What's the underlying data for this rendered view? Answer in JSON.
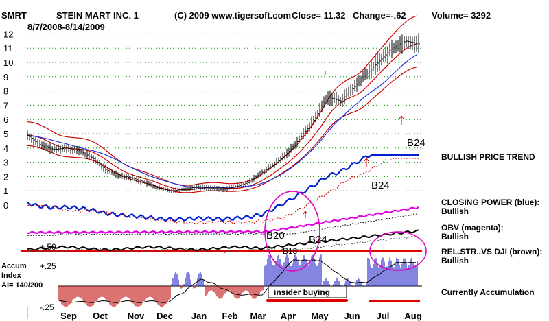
{
  "header": {
    "ticker": "SMRT",
    "company": "STEIN MART INC. 1",
    "copyright": "(C) 2009 www.tigersoft.com",
    "close_label": "Close=",
    "close_value": "11.32",
    "change_label": "Change=",
    "change_value": "-.62",
    "volume_label": "Volume=",
    "volume_value": "3292",
    "date_range": "8/7/2008-8/14/2009"
  },
  "colors": {
    "price": "#000000",
    "red_band": "#cc0000",
    "ma_blue": "#1f35e6",
    "closing_power": "#0020d0",
    "obv": "#e000e0",
    "rel_str": "#000000",
    "accum_bars": "#2020c8",
    "distrib_bars": "#c00000",
    "grid": "#009900",
    "annotations": "#e000c0"
  },
  "chart_data": {
    "type": "line",
    "title": "STEIN MART INC. 1",
    "x_tick_labels": [
      "Sep",
      "Oct",
      "Nov",
      "Dec",
      "Jan",
      "Feb",
      "Mar",
      "Apr",
      "May",
      "Jun",
      "Jul",
      "Aug"
    ],
    "price_axis": {
      "labels": [
        "12",
        "11",
        "10",
        "9",
        "8",
        "7",
        "6",
        "5",
        "4",
        "3",
        "2",
        "1",
        "0"
      ],
      "range": [
        0,
        12
      ]
    },
    "accum_axis": {
      "labels": [
        "+.50",
        "+.25",
        "-.25"
      ],
      "range": [
        -0.25,
        0.5
      ]
    },
    "series": [
      {
        "name": "Price (daily close)",
        "values": [
          4.9,
          4.2,
          3.9,
          4.0,
          3.8,
          3.3,
          2.5,
          2.1,
          1.9,
          1.6,
          1.2,
          1.0,
          1.1,
          1.3,
          1.2,
          1.1,
          1.3,
          1.6,
          2.3,
          2.9,
          3.7,
          4.8,
          6.0,
          7.6,
          7.3,
          8.2,
          9.2,
          10.1,
          11.0,
          11.5,
          11.3
        ]
      },
      {
        "name": "Closing Power (blue)",
        "trend": "Bullish"
      },
      {
        "name": "OBV (magenta)",
        "trend": "Bullish"
      },
      {
        "name": "Rel. Str. vs DJI (brown)",
        "trend": "Bullish"
      },
      {
        "name": "Accumulation Index",
        "value": "140/200"
      }
    ],
    "signals": [
      "B20",
      "B18",
      "B24",
      "B24",
      "B24"
    ]
  },
  "right_labels": {
    "price_trend": "BULLISH PRICE TREND",
    "closing_power_title": "CLOSING POWER (blue):",
    "closing_power_state": "Bullish",
    "obv_title": "OBV (magenta):",
    "obv_state": "Bullish",
    "relstr_title": "REL.STR..VS DJI (brown):",
    "relstr_state": "Bullish",
    "accum_state": "Currently Accumulation"
  },
  "accum_labels": {
    "title_line1": "Accum",
    "title_line2": "Index",
    "ai_value": "AI= 140/200"
  },
  "annotations": {
    "insider_buying": "insider buying"
  }
}
